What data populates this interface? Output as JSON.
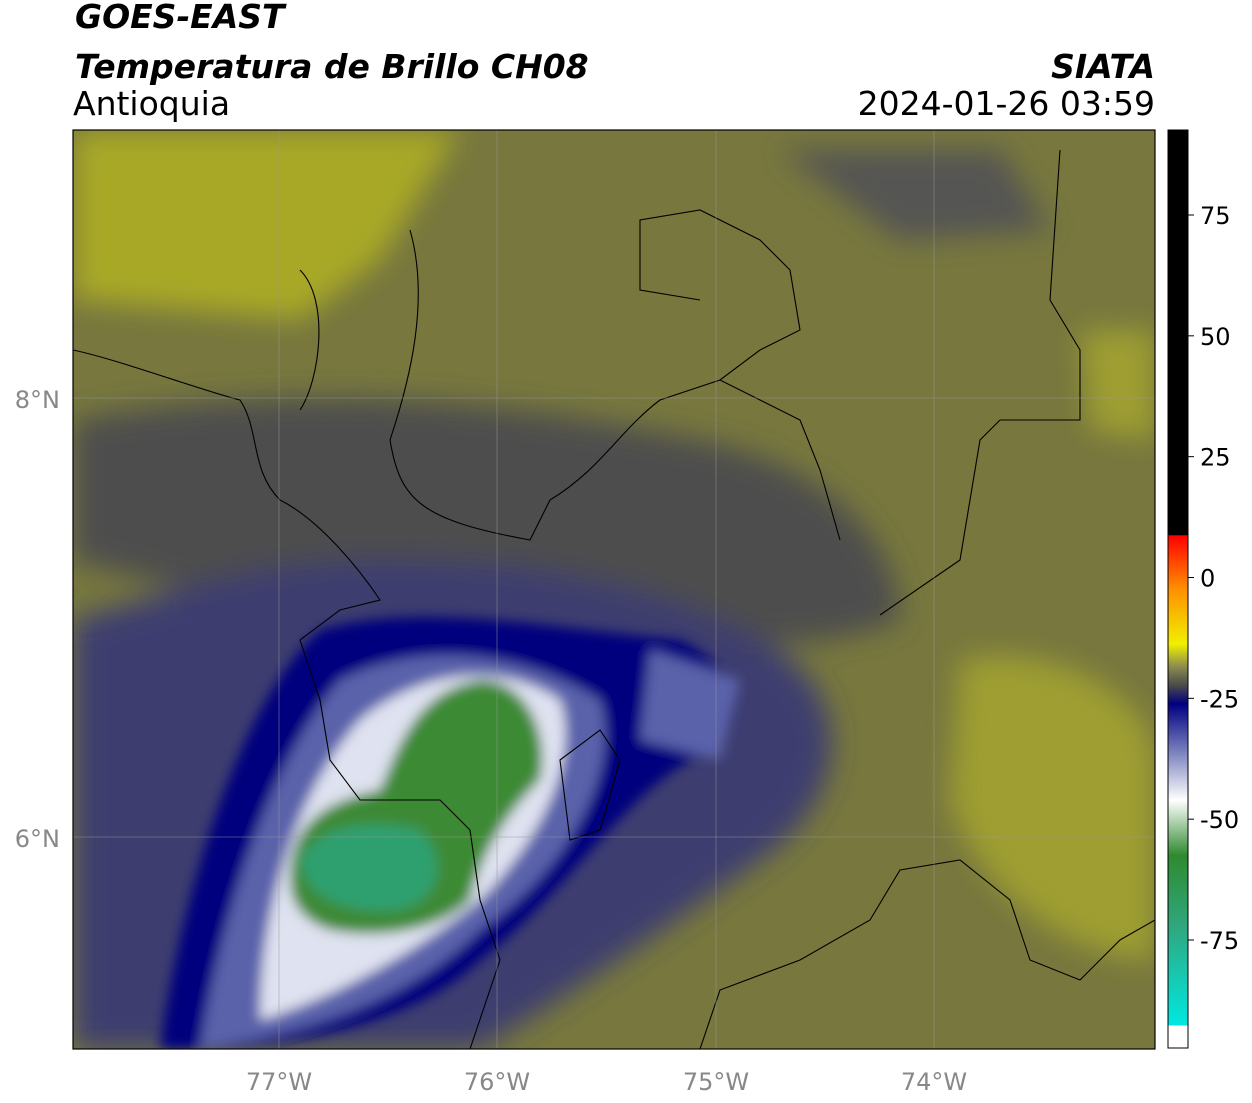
{
  "header": {
    "title": "GOES-EAST",
    "subtitle": "Temperatura de Brillo CH08",
    "region": "Antioquia",
    "source": "SIATA",
    "datetime": "2024-01-26 03:59"
  },
  "map": {
    "lon_labels": [
      "77°W",
      "76°W",
      "75°W",
      "74°W"
    ],
    "lat_labels": [
      "8°N",
      "6°N"
    ]
  },
  "colorbar": {
    "ticks": [
      75,
      50,
      25,
      0,
      -25,
      -50,
      -75
    ]
  }
}
